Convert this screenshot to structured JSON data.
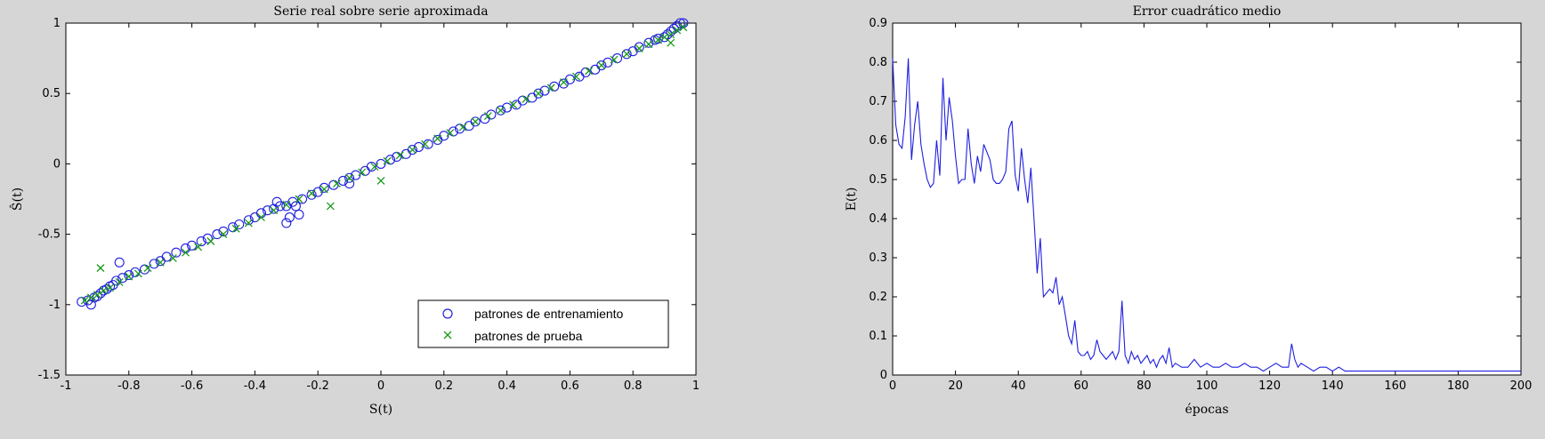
{
  "chart_data": [
    {
      "type": "scatter",
      "title": "Serie real sobre serie aproximada",
      "xlabel": "S(t)",
      "ylabel": "Ŝ(t)",
      "xlim": [
        -1,
        1
      ],
      "ylim": [
        -1.5,
        1
      ],
      "xticks": [
        -1,
        -0.8,
        -0.6,
        -0.4,
        -0.2,
        0,
        0.2,
        0.4,
        0.6,
        0.8,
        1
      ],
      "xtick_labels": [
        "-1",
        "-0.8",
        "-0.6",
        "-0.4",
        "-0.2",
        "0",
        "0.2",
        "0.4",
        "0.6",
        "0.8",
        "1"
      ],
      "yticks": [
        -1.5,
        -1,
        -0.5,
        0,
        0.5,
        1
      ],
      "ytick_labels": [
        "-1.5",
        "-1",
        "-0.5",
        "0",
        "0.5",
        "1"
      ],
      "grid": false,
      "legend_position": "bottom-right",
      "series": [
        {
          "name": "patrones de entrenamiento",
          "marker": "circle",
          "color": "#1f1fe0",
          "x": [
            -0.95,
            -0.93,
            -0.92,
            -0.91,
            -0.9,
            -0.89,
            -0.88,
            -0.87,
            -0.86,
            -0.85,
            -0.84,
            -0.82,
            -0.8,
            -0.78,
            -0.75,
            -0.72,
            -0.7,
            -0.68,
            -0.65,
            -0.62,
            -0.6,
            -0.57,
            -0.55,
            -0.52,
            -0.5,
            -0.47,
            -0.45,
            -0.42,
            -0.4,
            -0.38,
            -0.36,
            -0.34,
            -0.32,
            -0.3,
            -0.29,
            -0.28,
            -0.27,
            -0.25,
            -0.22,
            -0.2,
            -0.18,
            -0.15,
            -0.12,
            -0.1,
            -0.08,
            -0.05,
            -0.03,
            0.0,
            0.03,
            0.05,
            0.08,
            0.1,
            0.12,
            0.15,
            0.18,
            0.2,
            0.23,
            0.25,
            0.28,
            0.3,
            0.33,
            0.35,
            0.38,
            0.4,
            0.43,
            0.45,
            0.48,
            0.5,
            0.52,
            0.55,
            0.58,
            0.6,
            0.63,
            0.65,
            0.68,
            0.7,
            0.72,
            0.75,
            0.78,
            0.8,
            0.82,
            0.85,
            0.87,
            0.88,
            0.9,
            0.91,
            0.92,
            0.93,
            0.94,
            0.95,
            0.96,
            -0.26,
            -0.3,
            -0.33,
            -0.83,
            -0.1
          ],
          "y": [
            -0.98,
            -0.97,
            -1.0,
            -0.95,
            -0.94,
            -0.92,
            -0.9,
            -0.89,
            -0.87,
            -0.86,
            -0.83,
            -0.81,
            -0.79,
            -0.77,
            -0.75,
            -0.71,
            -0.69,
            -0.66,
            -0.63,
            -0.6,
            -0.58,
            -0.55,
            -0.53,
            -0.5,
            -0.48,
            -0.45,
            -0.43,
            -0.4,
            -0.38,
            -0.35,
            -0.33,
            -0.32,
            -0.3,
            -0.3,
            -0.38,
            -0.27,
            -0.3,
            -0.25,
            -0.22,
            -0.2,
            -0.17,
            -0.15,
            -0.12,
            -0.1,
            -0.08,
            -0.05,
            -0.02,
            0.0,
            0.03,
            0.05,
            0.07,
            0.1,
            0.12,
            0.14,
            0.17,
            0.2,
            0.23,
            0.25,
            0.27,
            0.3,
            0.32,
            0.35,
            0.38,
            0.4,
            0.42,
            0.45,
            0.47,
            0.5,
            0.52,
            0.55,
            0.57,
            0.6,
            0.62,
            0.65,
            0.67,
            0.7,
            0.72,
            0.75,
            0.78,
            0.8,
            0.83,
            0.86,
            0.88,
            0.89,
            0.9,
            0.92,
            0.94,
            0.96,
            0.98,
            1.0,
            1.0,
            -0.36,
            -0.42,
            -0.27,
            -0.7,
            -0.14
          ]
        },
        {
          "name": "patrones de prueba",
          "marker": "x",
          "color": "#1a9a1a",
          "x": [
            -0.94,
            -0.92,
            -0.9,
            -0.88,
            -0.86,
            -0.83,
            -0.8,
            -0.77,
            -0.74,
            -0.7,
            -0.66,
            -0.62,
            -0.58,
            -0.54,
            -0.5,
            -0.46,
            -0.42,
            -0.38,
            -0.34,
            -0.3,
            -0.26,
            -0.22,
            -0.18,
            -0.14,
            -0.1,
            -0.06,
            -0.02,
            0.02,
            0.06,
            0.1,
            0.14,
            0.18,
            0.22,
            0.26,
            0.3,
            0.34,
            0.38,
            0.42,
            0.46,
            0.5,
            0.54,
            0.58,
            0.62,
            0.66,
            0.7,
            0.74,
            0.78,
            0.82,
            0.85,
            0.88,
            0.9,
            0.92,
            0.94,
            0.96,
            -0.89,
            -0.16,
            0.0,
            0.92
          ],
          "y": [
            -0.97,
            -0.95,
            -0.93,
            -0.9,
            -0.88,
            -0.84,
            -0.8,
            -0.78,
            -0.74,
            -0.7,
            -0.67,
            -0.63,
            -0.59,
            -0.55,
            -0.5,
            -0.46,
            -0.42,
            -0.38,
            -0.33,
            -0.29,
            -0.25,
            -0.21,
            -0.18,
            -0.14,
            -0.1,
            -0.06,
            -0.02,
            0.02,
            0.06,
            0.1,
            0.14,
            0.18,
            0.22,
            0.26,
            0.3,
            0.34,
            0.38,
            0.42,
            0.46,
            0.5,
            0.54,
            0.58,
            0.62,
            0.66,
            0.7,
            0.74,
            0.78,
            0.82,
            0.85,
            0.88,
            0.9,
            0.92,
            0.95,
            0.97,
            -0.74,
            -0.3,
            -0.12,
            0.86
          ]
        }
      ]
    },
    {
      "type": "line",
      "title": "Error cuadrático medio",
      "xlabel": "épocas",
      "ylabel": "E(t)",
      "xlim": [
        0,
        200
      ],
      "ylim": [
        0,
        0.9
      ],
      "xticks": [
        0,
        20,
        40,
        60,
        80,
        100,
        120,
        140,
        160,
        180,
        200
      ],
      "xtick_labels": [
        "0",
        "20",
        "40",
        "60",
        "80",
        "100",
        "120",
        "140",
        "160",
        "180",
        "200"
      ],
      "yticks": [
        0,
        0.1,
        0.2,
        0.3,
        0.4,
        0.5,
        0.6,
        0.7,
        0.8,
        0.9
      ],
      "ytick_labels": [
        "0",
        "0.1",
        "0.2",
        "0.3",
        "0.4",
        "0.5",
        "0.6",
        "0.7",
        "0.8",
        "0.9"
      ],
      "grid": false,
      "series": [
        {
          "color": "#1f1fe0",
          "x": [
            0,
            1,
            2,
            3,
            4,
            5,
            6,
            7,
            8,
            9,
            10,
            11,
            12,
            13,
            14,
            15,
            16,
            17,
            18,
            19,
            20,
            21,
            22,
            23,
            24,
            25,
            26,
            27,
            28,
            29,
            30,
            31,
            32,
            33,
            34,
            35,
            36,
            37,
            38,
            39,
            40,
            41,
            42,
            43,
            44,
            45,
            46,
            47,
            48,
            49,
            50,
            51,
            52,
            53,
            54,
            55,
            56,
            57,
            58,
            59,
            60,
            61,
            62,
            63,
            64,
            65,
            66,
            67,
            68,
            69,
            70,
            71,
            72,
            73,
            74,
            75,
            76,
            77,
            78,
            79,
            80,
            81,
            82,
            83,
            84,
            85,
            86,
            87,
            88,
            89,
            90,
            92,
            94,
            96,
            98,
            100,
            102,
            104,
            106,
            108,
            110,
            112,
            114,
            116,
            118,
            120,
            122,
            124,
            126,
            127,
            128,
            129,
            130,
            132,
            134,
            136,
            138,
            140,
            142,
            144,
            146,
            148,
            150,
            155,
            160,
            165,
            170,
            175,
            180,
            185,
            190,
            195,
            200
          ],
          "y": [
            0.81,
            0.64,
            0.59,
            0.58,
            0.66,
            0.81,
            0.55,
            0.64,
            0.7,
            0.59,
            0.54,
            0.5,
            0.48,
            0.49,
            0.6,
            0.51,
            0.76,
            0.6,
            0.71,
            0.65,
            0.56,
            0.49,
            0.5,
            0.5,
            0.63,
            0.54,
            0.49,
            0.56,
            0.52,
            0.59,
            0.57,
            0.55,
            0.5,
            0.49,
            0.49,
            0.5,
            0.52,
            0.63,
            0.65,
            0.51,
            0.47,
            0.58,
            0.5,
            0.44,
            0.53,
            0.4,
            0.26,
            0.35,
            0.2,
            0.21,
            0.22,
            0.21,
            0.25,
            0.18,
            0.2,
            0.15,
            0.1,
            0.08,
            0.14,
            0.06,
            0.05,
            0.05,
            0.06,
            0.04,
            0.05,
            0.09,
            0.06,
            0.05,
            0.04,
            0.05,
            0.06,
            0.04,
            0.06,
            0.19,
            0.05,
            0.03,
            0.06,
            0.04,
            0.05,
            0.03,
            0.04,
            0.05,
            0.03,
            0.04,
            0.02,
            0.04,
            0.05,
            0.03,
            0.07,
            0.02,
            0.03,
            0.02,
            0.02,
            0.04,
            0.02,
            0.03,
            0.02,
            0.02,
            0.03,
            0.02,
            0.02,
            0.03,
            0.02,
            0.02,
            0.01,
            0.02,
            0.03,
            0.02,
            0.02,
            0.08,
            0.04,
            0.02,
            0.03,
            0.02,
            0.01,
            0.02,
            0.02,
            0.01,
            0.02,
            0.01,
            0.01,
            0.01,
            0.01,
            0.01,
            0.01,
            0.01,
            0.01,
            0.01,
            0.01,
            0.01,
            0.01,
            0.01,
            0.01
          ]
        }
      ]
    }
  ]
}
